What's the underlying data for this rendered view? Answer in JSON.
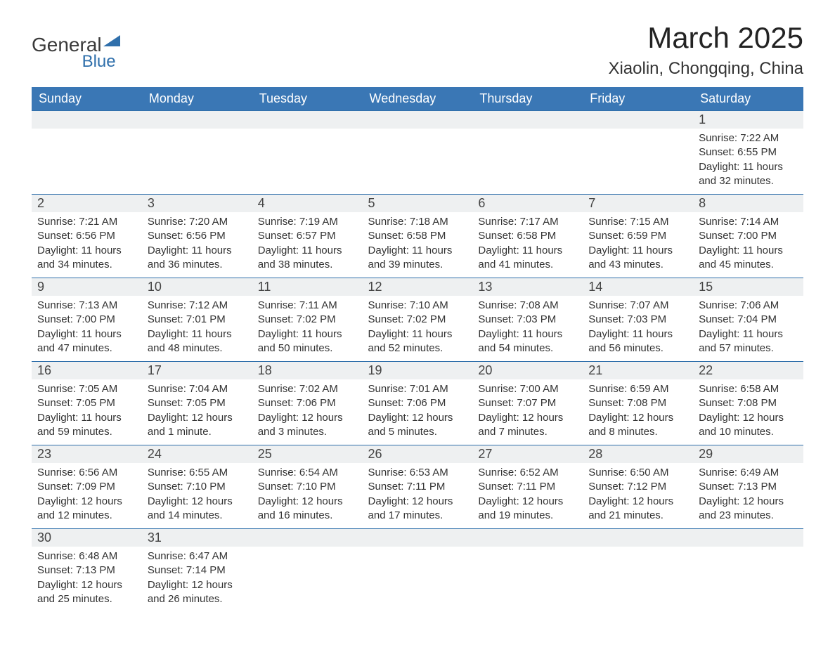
{
  "brand": {
    "name1": "General",
    "name2": "Blue"
  },
  "title": "March 2025",
  "location": "Xiaolin, Chongqing, China",
  "colors": {
    "header_bg": "#3a77b5",
    "header_text": "#ffffff",
    "row_divider": "#2f6fab",
    "daynum_bg": "#eef0f1",
    "body_text": "#333333",
    "page_bg": "#ffffff"
  },
  "typography": {
    "title_fontsize": 42,
    "location_fontsize": 24,
    "header_fontsize": 18,
    "daynum_fontsize": 18,
    "body_fontsize": 15
  },
  "calendar": {
    "type": "table",
    "columns": [
      "Sunday",
      "Monday",
      "Tuesday",
      "Wednesday",
      "Thursday",
      "Friday",
      "Saturday"
    ],
    "weeks": [
      [
        null,
        null,
        null,
        null,
        null,
        null,
        {
          "n": "1",
          "sunrise": "7:22 AM",
          "sunset": "6:55 PM",
          "daylight": "11 hours and 32 minutes."
        }
      ],
      [
        {
          "n": "2",
          "sunrise": "7:21 AM",
          "sunset": "6:56 PM",
          "daylight": "11 hours and 34 minutes."
        },
        {
          "n": "3",
          "sunrise": "7:20 AM",
          "sunset": "6:56 PM",
          "daylight": "11 hours and 36 minutes."
        },
        {
          "n": "4",
          "sunrise": "7:19 AM",
          "sunset": "6:57 PM",
          "daylight": "11 hours and 38 minutes."
        },
        {
          "n": "5",
          "sunrise": "7:18 AM",
          "sunset": "6:58 PM",
          "daylight": "11 hours and 39 minutes."
        },
        {
          "n": "6",
          "sunrise": "7:17 AM",
          "sunset": "6:58 PM",
          "daylight": "11 hours and 41 minutes."
        },
        {
          "n": "7",
          "sunrise": "7:15 AM",
          "sunset": "6:59 PM",
          "daylight": "11 hours and 43 minutes."
        },
        {
          "n": "8",
          "sunrise": "7:14 AM",
          "sunset": "7:00 PM",
          "daylight": "11 hours and 45 minutes."
        }
      ],
      [
        {
          "n": "9",
          "sunrise": "7:13 AM",
          "sunset": "7:00 PM",
          "daylight": "11 hours and 47 minutes."
        },
        {
          "n": "10",
          "sunrise": "7:12 AM",
          "sunset": "7:01 PM",
          "daylight": "11 hours and 48 minutes."
        },
        {
          "n": "11",
          "sunrise": "7:11 AM",
          "sunset": "7:02 PM",
          "daylight": "11 hours and 50 minutes."
        },
        {
          "n": "12",
          "sunrise": "7:10 AM",
          "sunset": "7:02 PM",
          "daylight": "11 hours and 52 minutes."
        },
        {
          "n": "13",
          "sunrise": "7:08 AM",
          "sunset": "7:03 PM",
          "daylight": "11 hours and 54 minutes."
        },
        {
          "n": "14",
          "sunrise": "7:07 AM",
          "sunset": "7:03 PM",
          "daylight": "11 hours and 56 minutes."
        },
        {
          "n": "15",
          "sunrise": "7:06 AM",
          "sunset": "7:04 PM",
          "daylight": "11 hours and 57 minutes."
        }
      ],
      [
        {
          "n": "16",
          "sunrise": "7:05 AM",
          "sunset": "7:05 PM",
          "daylight": "11 hours and 59 minutes."
        },
        {
          "n": "17",
          "sunrise": "7:04 AM",
          "sunset": "7:05 PM",
          "daylight": "12 hours and 1 minute."
        },
        {
          "n": "18",
          "sunrise": "7:02 AM",
          "sunset": "7:06 PM",
          "daylight": "12 hours and 3 minutes."
        },
        {
          "n": "19",
          "sunrise": "7:01 AM",
          "sunset": "7:06 PM",
          "daylight": "12 hours and 5 minutes."
        },
        {
          "n": "20",
          "sunrise": "7:00 AM",
          "sunset": "7:07 PM",
          "daylight": "12 hours and 7 minutes."
        },
        {
          "n": "21",
          "sunrise": "6:59 AM",
          "sunset": "7:08 PM",
          "daylight": "12 hours and 8 minutes."
        },
        {
          "n": "22",
          "sunrise": "6:58 AM",
          "sunset": "7:08 PM",
          "daylight": "12 hours and 10 minutes."
        }
      ],
      [
        {
          "n": "23",
          "sunrise": "6:56 AM",
          "sunset": "7:09 PM",
          "daylight": "12 hours and 12 minutes."
        },
        {
          "n": "24",
          "sunrise": "6:55 AM",
          "sunset": "7:10 PM",
          "daylight": "12 hours and 14 minutes."
        },
        {
          "n": "25",
          "sunrise": "6:54 AM",
          "sunset": "7:10 PM",
          "daylight": "12 hours and 16 minutes."
        },
        {
          "n": "26",
          "sunrise": "6:53 AM",
          "sunset": "7:11 PM",
          "daylight": "12 hours and 17 minutes."
        },
        {
          "n": "27",
          "sunrise": "6:52 AM",
          "sunset": "7:11 PM",
          "daylight": "12 hours and 19 minutes."
        },
        {
          "n": "28",
          "sunrise": "6:50 AM",
          "sunset": "7:12 PM",
          "daylight": "12 hours and 21 minutes."
        },
        {
          "n": "29",
          "sunrise": "6:49 AM",
          "sunset": "7:13 PM",
          "daylight": "12 hours and 23 minutes."
        }
      ],
      [
        {
          "n": "30",
          "sunrise": "6:48 AM",
          "sunset": "7:13 PM",
          "daylight": "12 hours and 25 minutes."
        },
        {
          "n": "31",
          "sunrise": "6:47 AM",
          "sunset": "7:14 PM",
          "daylight": "12 hours and 26 minutes."
        },
        null,
        null,
        null,
        null,
        null
      ]
    ],
    "labels": {
      "sunrise": "Sunrise:",
      "sunset": "Sunset:",
      "daylight": "Daylight:"
    }
  }
}
